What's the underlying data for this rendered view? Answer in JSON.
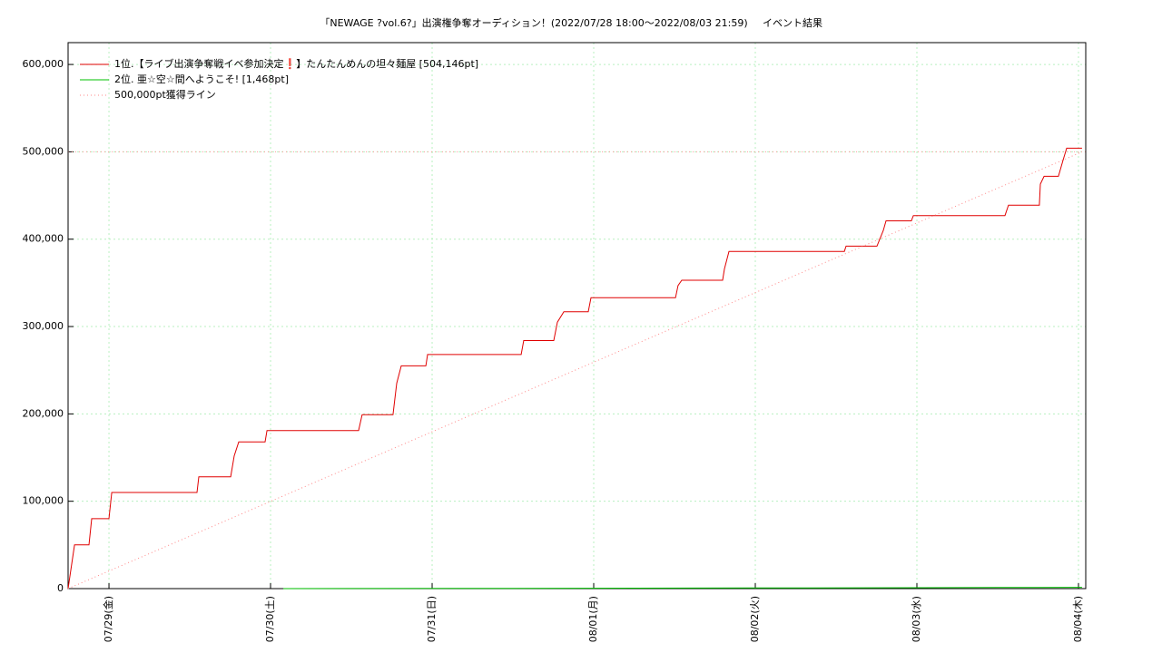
{
  "chart_data": {
    "type": "line",
    "title": "「NEWAGE ?vol.6?」出演権争奪オーディション！(2022/07/28 18:00〜2022/08/03 21:59)",
    "subtitle": "イベント結果",
    "xlim": [
      0.747,
      7.045
    ],
    "xticks": [
      {
        "value": 1,
        "label": "07/29(金)"
      },
      {
        "value": 2,
        "label": "07/30(土)"
      },
      {
        "value": 3,
        "label": "07/31(日)"
      },
      {
        "value": 4,
        "label": "08/01(月)"
      },
      {
        "value": 5,
        "label": "08/02(火)"
      },
      {
        "value": 6,
        "label": "08/03(水)"
      },
      {
        "value": 7,
        "label": "08/04(木)"
      }
    ],
    "ylim": [
      0,
      625000
    ],
    "yticks": [
      0,
      {
        "value": 100000,
        "label": "100,000"
      },
      {
        "value": 200000,
        "label": "200,000"
      },
      {
        "value": 300000,
        "label": "300,000"
      },
      {
        "value": 400000,
        "label": "400,000"
      },
      {
        "value": 500000,
        "label": "500,000"
      },
      {
        "value": 600000,
        "label": "600,000"
      }
    ],
    "grid": true,
    "legend": "top-left",
    "target_line": 500000,
    "target_color": "#ff9999",
    "series": [
      {
        "name": "1位.【ライブ出演争奪戦イベ参加決定❗】たんたんめんの坦々麺屋 [504,146pt]",
        "color": "#e00000",
        "style": "solid",
        "x": [
          0.747,
          0.787,
          0.876,
          0.893,
          1.0,
          1.017,
          1.545,
          1.556,
          1.753,
          1.775,
          1.803,
          1.966,
          1.978,
          2.545,
          2.567,
          2.758,
          2.781,
          2.809,
          2.961,
          2.972,
          3.551,
          3.567,
          3.753,
          3.775,
          3.815,
          3.966,
          3.983,
          4.506,
          4.522,
          4.545,
          4.798,
          4.809,
          4.837,
          5.551,
          5.562,
          5.753,
          5.792,
          5.809,
          5.966,
          5.978,
          6.545,
          6.567,
          6.758,
          6.764,
          6.787,
          6.876,
          6.904,
          6.927,
          7.022
        ],
        "values": [
          0,
          50000,
          50000,
          80000,
          80000,
          110000,
          110000,
          128000,
          128000,
          152000,
          168000,
          168000,
          181000,
          181000,
          199000,
          199000,
          235000,
          255000,
          255000,
          268000,
          268000,
          284000,
          284000,
          305000,
          317000,
          317000,
          333000,
          333000,
          347000,
          353000,
          353000,
          366000,
          386000,
          386000,
          392000,
          392000,
          410000,
          421000,
          421000,
          427000,
          427000,
          439000,
          439000,
          463000,
          472000,
          472000,
          490000,
          504146,
          504146
        ]
      },
      {
        "name": "2位. 亜☆空☆間へようこそ! [1,468pt]",
        "color": "#00c000",
        "style": "solid",
        "x": [
          2.079,
          3.5,
          5.0,
          6.5,
          7.022
        ],
        "values": [
          0,
          300,
          700,
          1200,
          1468
        ]
      },
      {
        "name": "500,000pt獲得ライン",
        "color": "#ff8888",
        "style": "dotted",
        "x": [
          0.747,
          7.022
        ],
        "values": [
          0,
          500000
        ]
      }
    ]
  }
}
